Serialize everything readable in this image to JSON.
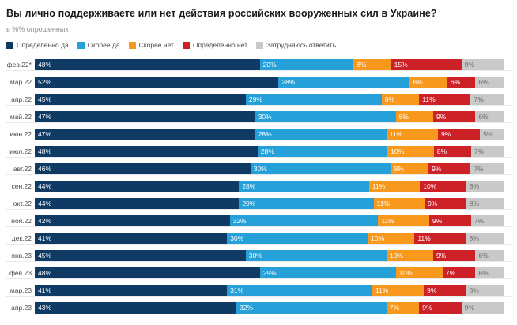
{
  "title": "Вы лично поддерживаете или нет действия российских вооруженных сил в Украине?",
  "subtitle": "в %% опрошенных",
  "legend": [
    {
      "label": "Определенно да",
      "color": "#0e3a64"
    },
    {
      "label": "Скорее да",
      "color": "#25a0d8"
    },
    {
      "label": "Скорее нет",
      "color": "#f8981d"
    },
    {
      "label": "Определенно нет",
      "color": "#cc2127"
    },
    {
      "label": "Затрудняюсь ответить",
      "color": "#c9c9c9"
    }
  ],
  "chart_data": {
    "type": "bar",
    "stacked": true,
    "orientation": "horizontal",
    "value_suffix": "%",
    "grid": "row-separators",
    "legend_position": "top",
    "categories": [
      "фев.22*",
      "мар.22",
      "апр.22",
      "май.22",
      "июн.22",
      "июл.22",
      "авг.22",
      "сен.22",
      "окт.22",
      "ноя.22",
      "дек.22",
      "янв.23",
      "фев.23",
      "мар.23",
      "апр.23"
    ],
    "series": [
      {
        "name": "Определенно да",
        "color": "#0e3a64",
        "text_color": "#ffffff",
        "values": [
          48,
          52,
          45,
          47,
          47,
          48,
          46,
          44,
          44,
          42,
          41,
          45,
          48,
          41,
          43
        ]
      },
      {
        "name": "Скорее да",
        "color": "#25a0d8",
        "text_color": "#ffffff",
        "values": [
          20,
          28,
          29,
          30,
          28,
          28,
          30,
          28,
          29,
          32,
          30,
          30,
          29,
          31,
          32
        ]
      },
      {
        "name": "Скорее нет",
        "color": "#f8981d",
        "text_color": "#ffffff",
        "values": [
          8,
          8,
          8,
          8,
          11,
          10,
          8,
          11,
          11,
          11,
          10,
          10,
          10,
          11,
          7
        ]
      },
      {
        "name": "Определенно нет",
        "color": "#cc2127",
        "text_color": "#ffffff",
        "values": [
          15,
          6,
          11,
          9,
          9,
          8,
          9,
          10,
          9,
          9,
          11,
          9,
          7,
          9,
          9
        ]
      },
      {
        "name": "Затрудняюсь ответить",
        "color": "#c9c9c9",
        "text_color": "#6e6e6e",
        "values": [
          9,
          6,
          7,
          6,
          5,
          7,
          7,
          8,
          8,
          7,
          8,
          6,
          6,
          8,
          9
        ]
      }
    ]
  }
}
